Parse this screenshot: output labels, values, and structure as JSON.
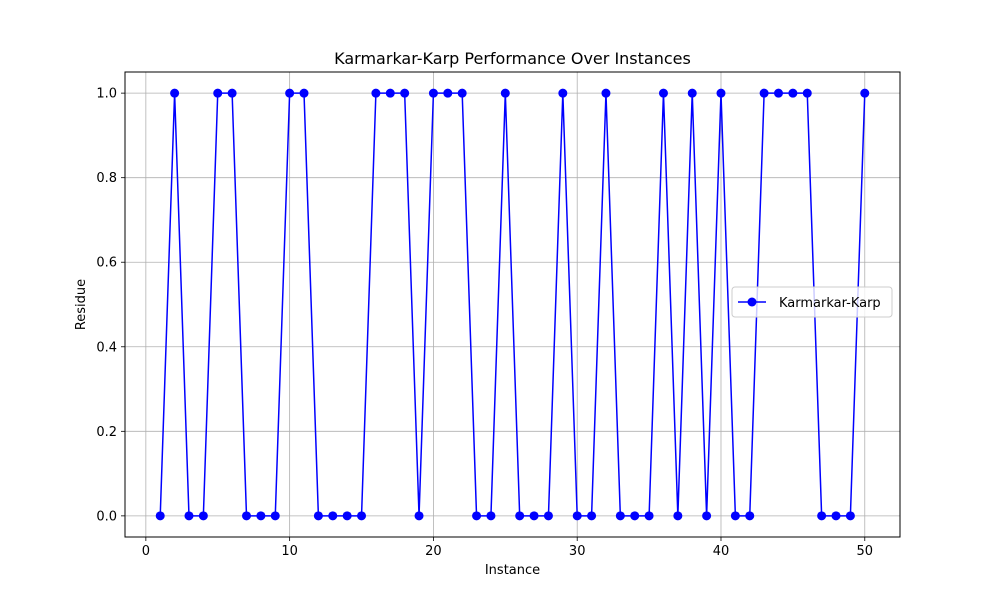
{
  "chart_data": {
    "type": "line",
    "title": "Karmarkar-Karp Performance Over Instances",
    "xlabel": "Instance",
    "ylabel": "Residue",
    "xlim": [
      -1.45,
      52.45
    ],
    "ylim": [
      -0.05,
      1.05
    ],
    "xticks": [
      0,
      10,
      20,
      30,
      40,
      50
    ],
    "xtick_labels": [
      "0",
      "10",
      "20",
      "30",
      "40",
      "50"
    ],
    "yticks": [
      0.0,
      0.2,
      0.4,
      0.6,
      0.8,
      1.0
    ],
    "ytick_labels": [
      "0.0",
      "0.2",
      "0.4",
      "0.6",
      "0.8",
      "1.0"
    ],
    "grid": true,
    "legend_position": "center-right",
    "x": [
      1,
      2,
      3,
      4,
      5,
      6,
      7,
      8,
      9,
      10,
      11,
      12,
      13,
      14,
      15,
      16,
      17,
      18,
      19,
      20,
      21,
      22,
      23,
      24,
      25,
      26,
      27,
      28,
      29,
      30,
      31,
      32,
      33,
      34,
      35,
      36,
      37,
      38,
      39,
      40,
      41,
      42,
      43,
      44,
      45,
      46,
      47,
      48,
      49,
      50
    ],
    "series": [
      {
        "name": "Karmarkar-Karp",
        "color": "#0000ff",
        "marker": "circle",
        "values": [
          0,
          1,
          0,
          0,
          1,
          1,
          0,
          0,
          0,
          1,
          1,
          0,
          0,
          0,
          0,
          1,
          1,
          1,
          0,
          1,
          1,
          1,
          0,
          0,
          1,
          0,
          0,
          0,
          1,
          0,
          0,
          1,
          0,
          0,
          0,
          1,
          0,
          1,
          0,
          1,
          0,
          0,
          1,
          1,
          1,
          1,
          0,
          0,
          0,
          1
        ]
      }
    ]
  }
}
